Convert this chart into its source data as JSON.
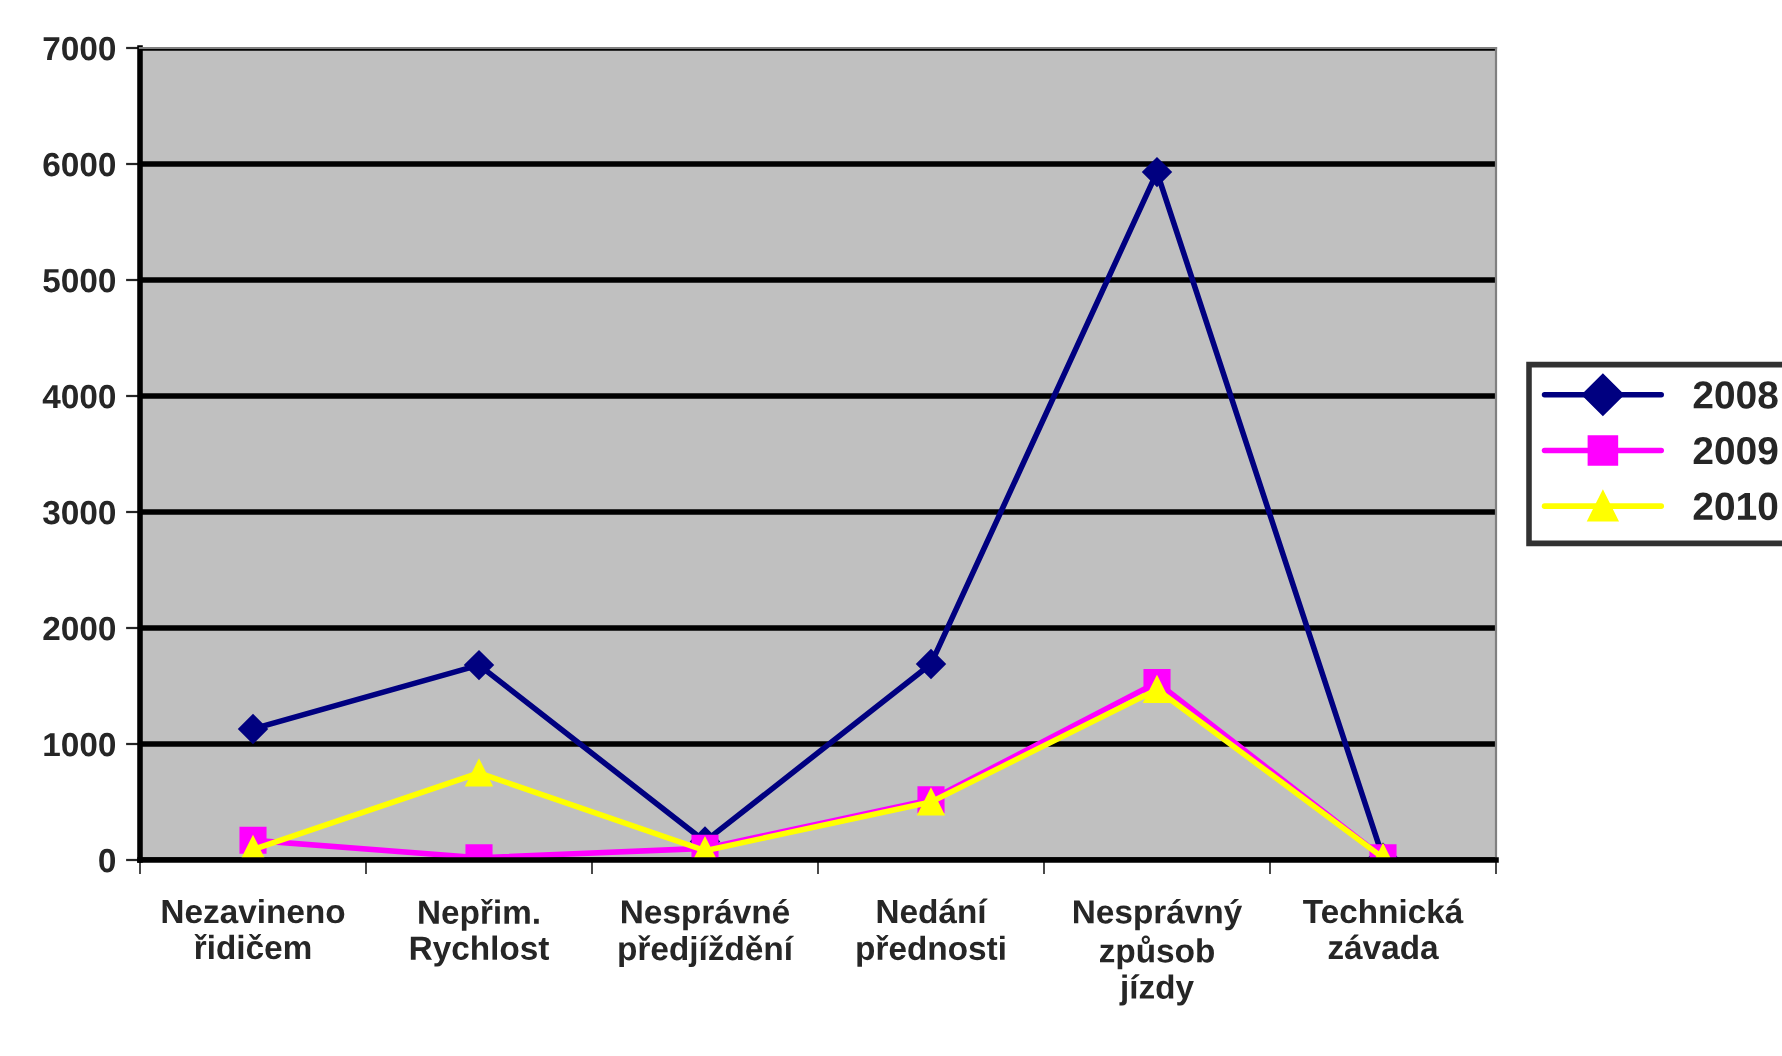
{
  "chart_data": {
    "type": "line",
    "categories": [
      "Nezavineno\nřidičem",
      "Nepřim.\nRychlost",
      "Nesprávné\npředjíždění",
      "Nedání\npřednosti",
      "Nesprávný\nzpůsob\njízdy",
      "Technická\nzávada"
    ],
    "series": [
      {
        "name": "2008",
        "color": "#000080",
        "marker": "diamond",
        "values": [
          1130,
          1680,
          160,
          1690,
          5930,
          20
        ]
      },
      {
        "name": "2009",
        "color": "#ff00ff",
        "marker": "square",
        "values": [
          170,
          20,
          100,
          520,
          1530,
          20
        ]
      },
      {
        "name": "2010",
        "color": "#ffff00",
        "marker": "triangle",
        "values": [
          90,
          750,
          80,
          500,
          1470,
          20
        ]
      }
    ],
    "ylim": [
      0,
      7000
    ],
    "yticks": [
      0,
      1000,
      2000,
      3000,
      4000,
      5000,
      6000,
      7000
    ],
    "grid": "y",
    "legend": "right",
    "line_style": "solid"
  }
}
